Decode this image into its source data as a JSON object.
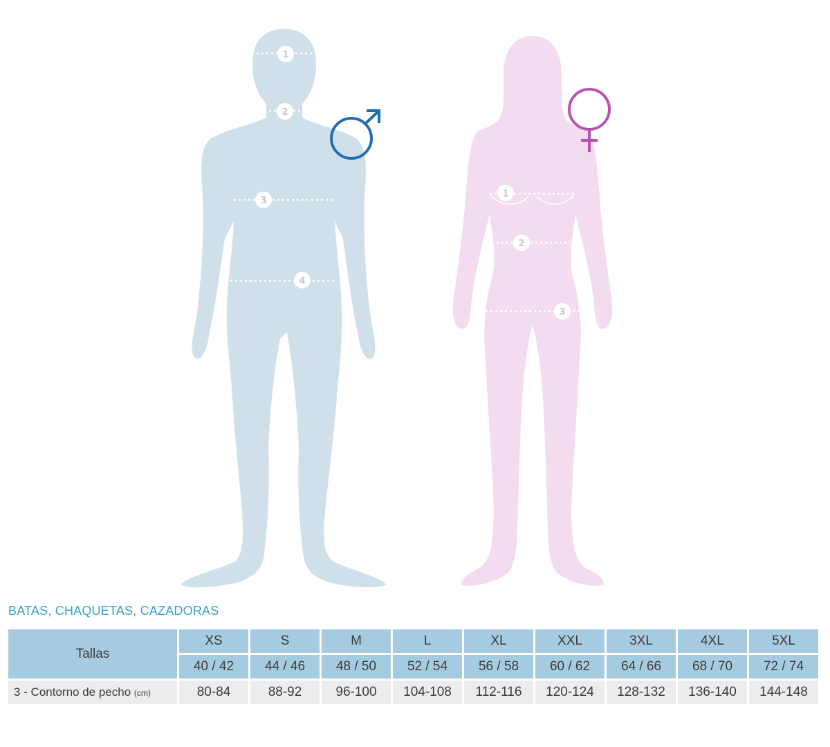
{
  "figures": {
    "male": {
      "symbol_icon": "male-symbol-icon",
      "markers": [
        "1",
        "2",
        "3",
        "4"
      ],
      "colors": {
        "body": "#cfe0ea",
        "symbol": "#1f6db3"
      }
    },
    "female": {
      "symbol_icon": "female-symbol-icon",
      "markers": [
        "1",
        "2",
        "3"
      ],
      "colors": {
        "body": "#f3dcef",
        "symbol": "#b652b0"
      }
    }
  },
  "section": {
    "title": "BATAS, CHAQUETAS, CAZADORAS"
  },
  "table": {
    "row_label_sizes": "Tallas",
    "sizes": [
      "XS",
      "S",
      "M",
      "L",
      "XL",
      "XXL",
      "3XL",
      "4XL",
      "5XL"
    ],
    "equivalents": [
      "40 / 42",
      "44 / 46",
      "48 / 50",
      "52 / 54",
      "56 / 58",
      "60 / 62",
      "64 / 66",
      "68 / 70",
      "72 / 74"
    ],
    "measure_label": "3 - Contorno de pecho",
    "measure_unit": "(cm)",
    "measure_values": [
      "80-84",
      "88-92",
      "96-100",
      "104-108",
      "112-116",
      "120-124",
      "128-132",
      "136-140",
      "144-148"
    ],
    "colors": {
      "header": "#a5cbe0",
      "row": "#ececec",
      "title": "#3aa0cf"
    }
  }
}
